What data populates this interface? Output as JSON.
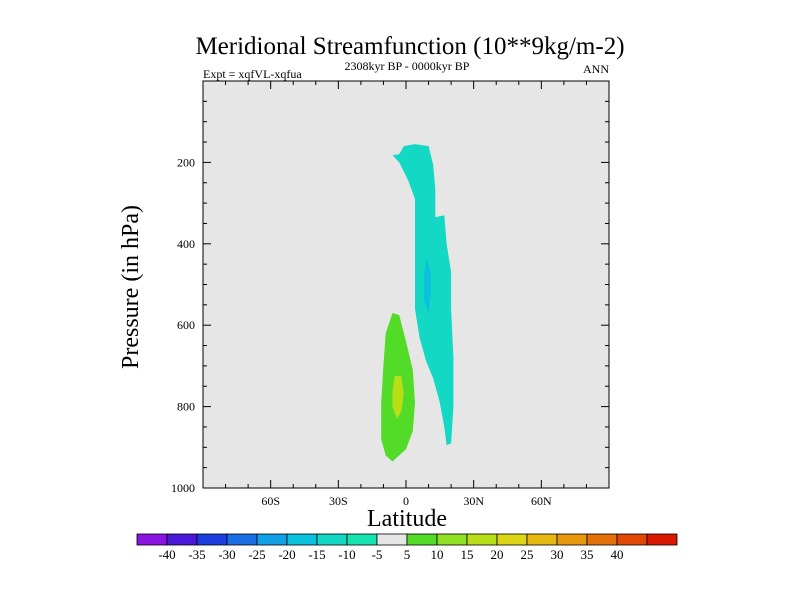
{
  "chart_data": {
    "type": "contour",
    "title": "Meridional Streamfunction (10**9kg/m-2)",
    "subtitle_left": "Expt = xqfVL-xqfua",
    "subtitle_center": "2308kyr BP - 0000kyr BP",
    "subtitle_right": "ANN",
    "xlabel": "Latitude",
    "ylabel": "Pressure (in hPa)",
    "xlim": [
      -90,
      90
    ],
    "ylim": [
      1000,
      0
    ],
    "x_ticks": [
      {
        "value": -60,
        "label": "60S"
      },
      {
        "value": -30,
        "label": "30S"
      },
      {
        "value": 0,
        "label": "0"
      },
      {
        "value": 30,
        "label": "30N"
      },
      {
        "value": 60,
        "label": "60N"
      }
    ],
    "y_ticks": [
      {
        "value": 200,
        "label": "200"
      },
      {
        "value": 400,
        "label": "400"
      },
      {
        "value": 600,
        "label": "600"
      },
      {
        "value": 800,
        "label": "800"
      },
      {
        "value": 1000,
        "label": "1000"
      }
    ],
    "background_color": "#e6e6e6",
    "colorbar": {
      "boundaries": [
        -45,
        -40,
        -35,
        -30,
        -25,
        -20,
        -15,
        -10,
        -5,
        5,
        10,
        15,
        20,
        25,
        30,
        35,
        40,
        45
      ],
      "labels": [
        "-40",
        "-35",
        "-30",
        "-25",
        "-20",
        "-15",
        "-10",
        "-5",
        "5",
        "10",
        "15",
        "20",
        "25",
        "30",
        "35",
        "40"
      ],
      "colors": [
        "#8a14e0",
        "#4a18d8",
        "#1c3ee0",
        "#1a6ee6",
        "#0fa0e6",
        "#0ac2de",
        "#12d8c4",
        "#16e2b0",
        "#e6e6e6",
        "#52dc28",
        "#8ee020",
        "#b8de18",
        "#dcd414",
        "#e6b80e",
        "#e6980a",
        "#e47008",
        "#e04804",
        "#d81800"
      ]
    },
    "contours": [
      {
        "name": "negative-cell-nh",
        "level_range": [
          -10,
          -5
        ],
        "color": "#12d8c4",
        "points": [
          [
            -3,
            180
          ],
          [
            -1,
            160
          ],
          [
            4,
            155
          ],
          [
            10,
            160
          ],
          [
            12,
            205
          ],
          [
            13,
            265
          ],
          [
            13,
            335
          ],
          [
            17,
            330
          ],
          [
            18,
            400
          ],
          [
            20,
            470
          ],
          [
            20,
            560
          ],
          [
            21,
            680
          ],
          [
            21,
            800
          ],
          [
            20,
            890
          ],
          [
            18,
            895
          ],
          [
            17,
            850
          ],
          [
            15,
            790
          ],
          [
            12,
            730
          ],
          [
            9,
            690
          ],
          [
            6,
            630
          ],
          [
            4,
            560
          ],
          [
            4,
            460
          ],
          [
            4,
            370
          ],
          [
            4,
            290
          ],
          [
            1,
            245
          ],
          [
            -3,
            200
          ],
          [
            -6,
            182
          ]
        ]
      },
      {
        "name": "negative-core-nh",
        "level_range": [
          -15,
          -10
        ],
        "color": "#0ac2de",
        "points": [
          [
            9,
            435
          ],
          [
            11,
            470
          ],
          [
            11,
            520
          ],
          [
            10,
            570
          ],
          [
            8,
            540
          ],
          [
            8,
            480
          ]
        ]
      },
      {
        "name": "positive-cell-sh",
        "level_range": [
          5,
          10
        ],
        "color": "#52dc28",
        "points": [
          [
            -6,
            570
          ],
          [
            -3,
            575
          ],
          [
            0,
            640
          ],
          [
            3,
            710
          ],
          [
            4,
            790
          ],
          [
            3,
            860
          ],
          [
            0,
            905
          ],
          [
            -3,
            920
          ],
          [
            -6,
            935
          ],
          [
            -9,
            920
          ],
          [
            -11,
            880
          ],
          [
            -11,
            790
          ],
          [
            -10,
            700
          ],
          [
            -9,
            620
          ]
        ]
      },
      {
        "name": "positive-core-sh",
        "level_range": [
          10,
          15
        ],
        "color": "#b8de18",
        "points": [
          [
            -5,
            725
          ],
          [
            -2,
            725
          ],
          [
            -1,
            770
          ],
          [
            -2,
            810
          ],
          [
            -4,
            830
          ],
          [
            -6,
            800
          ],
          [
            -6,
            760
          ]
        ]
      }
    ]
  }
}
